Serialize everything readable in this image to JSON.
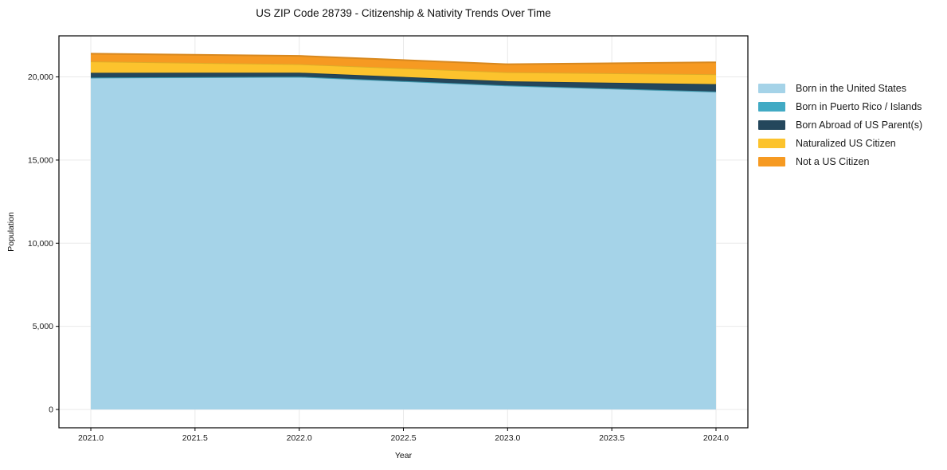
{
  "chart_data": {
    "type": "area",
    "stacked": true,
    "title": "US ZIP Code 28739 - Citizenship & Nativity Trends Over Time",
    "xlabel": "Year",
    "ylabel": "Population",
    "x": [
      2021,
      2022,
      2023,
      2024
    ],
    "series": [
      {
        "key": "born-us",
        "name": "Born in the United States",
        "color": "#a5d3e8",
        "values": [
          19950,
          20005,
          19475,
          19105
        ]
      },
      {
        "key": "born-pr",
        "name": "Born in Puerto Rico / Islands",
        "color": "#41aac4",
        "values": [
          12,
          12,
          12,
          15
        ]
      },
      {
        "key": "born-abroad",
        "name": "Born Abroad of US Parent(s)",
        "color": "#24475c",
        "values": [
          285,
          240,
          255,
          445
        ]
      },
      {
        "key": "naturalized",
        "name": "Naturalized US Citizen",
        "color": "#fcc32d",
        "values": [
          685,
          510,
          540,
          595
        ]
      },
      {
        "key": "not-citizen",
        "name": "Not a US Citizen",
        "color": "#f69a22",
        "values": [
          465,
          500,
          480,
          720
        ]
      }
    ],
    "totals": [
      21397,
      21267,
      20762,
      20880
    ],
    "xlim": [
      2020.847,
      2024.153
    ],
    "ylim": [
      -1100,
      22470
    ],
    "x_ticks": [
      {
        "v": 2021.0,
        "label": "2021.0"
      },
      {
        "v": 2021.5,
        "label": "2021.5"
      },
      {
        "v": 2022.0,
        "label": "2022.0"
      },
      {
        "v": 2022.5,
        "label": "2022.5"
      },
      {
        "v": 2023.0,
        "label": "2023.0"
      },
      {
        "v": 2023.5,
        "label": "2023.5"
      },
      {
        "v": 2024.0,
        "label": "2024.0"
      }
    ],
    "y_ticks": [
      {
        "v": 0,
        "label": "0"
      },
      {
        "v": 5000,
        "label": "5,000"
      },
      {
        "v": 10000,
        "label": "10,000"
      },
      {
        "v": 15000,
        "label": "15,000"
      },
      {
        "v": 20000,
        "label": "20,000"
      }
    ],
    "grid": true,
    "grid_color": "#e9e9e9",
    "spine_color": "#000000",
    "tick_label_color": "#1a1a1a",
    "legend_position": "right"
  }
}
